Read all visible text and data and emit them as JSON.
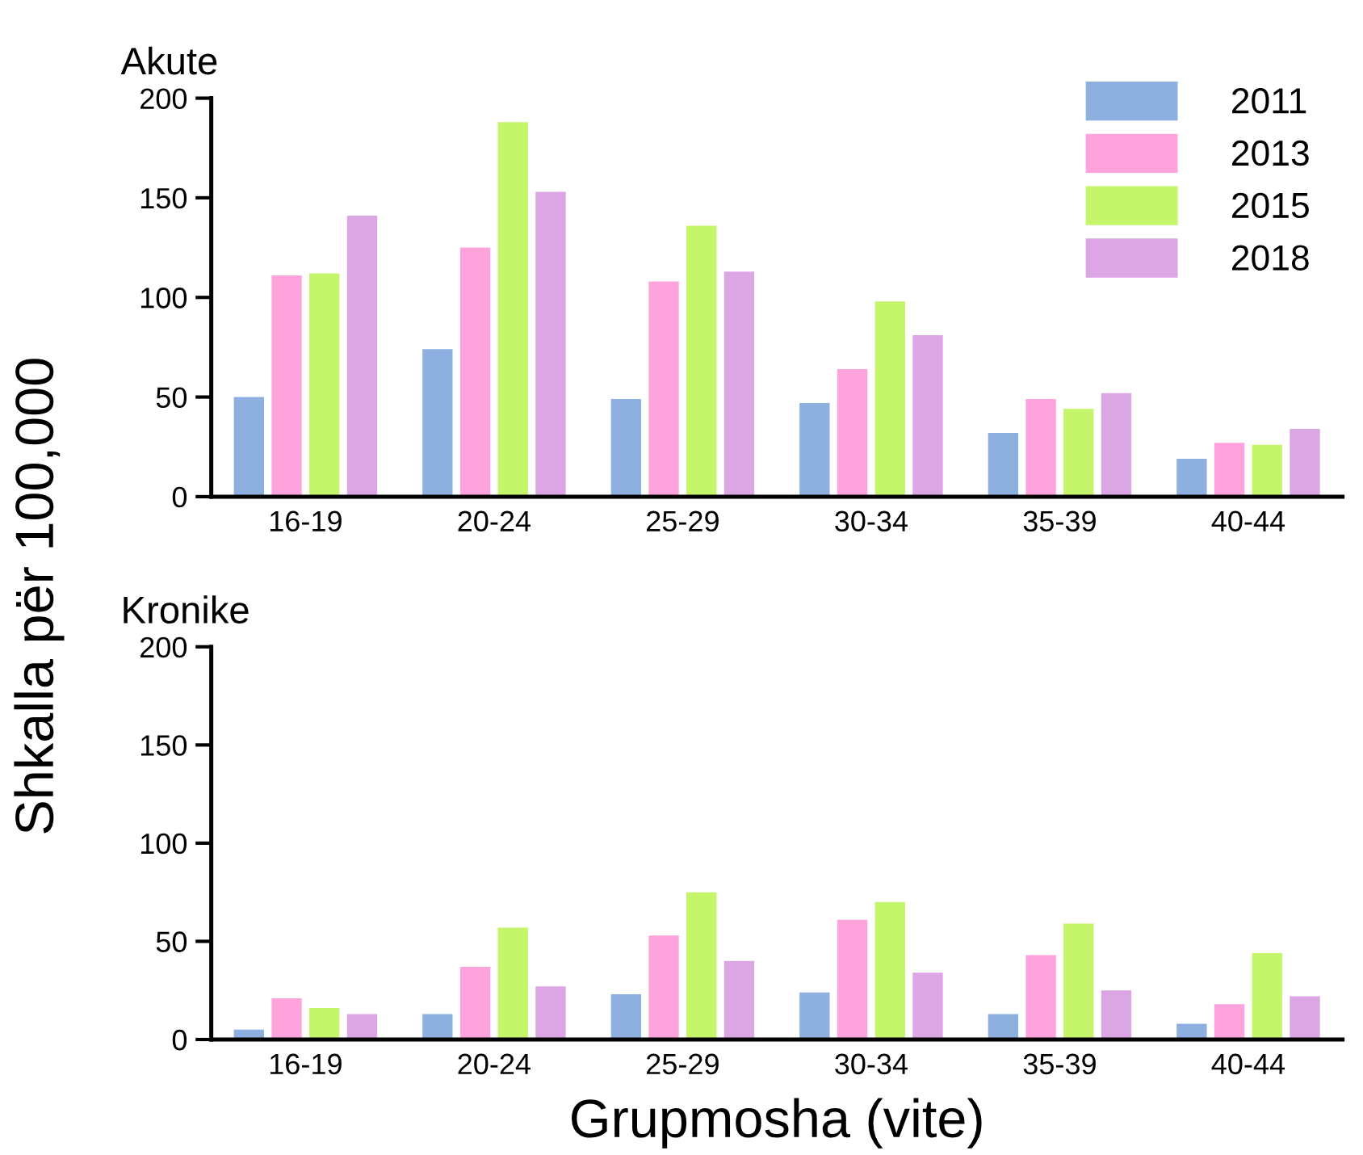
{
  "chart_data": [
    {
      "type": "bar",
      "title": "Akute",
      "ylabel": "Shkalla për 100,000",
      "categories": [
        "16-19",
        "20-24",
        "25-29",
        "30-34",
        "35-39",
        "40-44"
      ],
      "series": [
        {
          "name": "2011",
          "color": "#8eb0e0",
          "values": [
            50,
            74,
            49,
            47,
            32,
            19
          ]
        },
        {
          "name": "2013",
          "color": "#ffa3dc",
          "values": [
            111,
            125,
            108,
            64,
            49,
            27
          ]
        },
        {
          "name": "2015",
          "color": "#c4f56a",
          "values": [
            112,
            188,
            136,
            98,
            44,
            26
          ]
        },
        {
          "name": "2018",
          "color": "#dca6e4",
          "values": [
            141,
            153,
            113,
            81,
            52,
            34
          ]
        }
      ],
      "ylim": [
        0,
        200
      ],
      "yticks": [
        0,
        50,
        100,
        150,
        200
      ],
      "grid": false,
      "legend": "top right"
    },
    {
      "type": "bar",
      "title": "Kronike",
      "xlabel": "Grupmosha (vite)",
      "categories": [
        "16-19",
        "20-24",
        "25-29",
        "30-34",
        "35-39",
        "40-44"
      ],
      "series": [
        {
          "color": "#8eb0e0",
          "values": [
            5,
            13,
            23,
            24,
            13,
            8
          ]
        },
        {
          "color": "#ffa3dc",
          "values": [
            21,
            37,
            53,
            61,
            43,
            18
          ]
        },
        {
          "color": "#c4f56a",
          "values": [
            16,
            57,
            75,
            70,
            59,
            44
          ]
        },
        {
          "color": "#dca6e4",
          "values": [
            13,
            27,
            40,
            34,
            25,
            22
          ]
        }
      ],
      "ylim": [
        0,
        200
      ],
      "yticks": [
        0,
        50,
        100,
        150,
        200
      ],
      "grid": false,
      "legend": false
    }
  ]
}
